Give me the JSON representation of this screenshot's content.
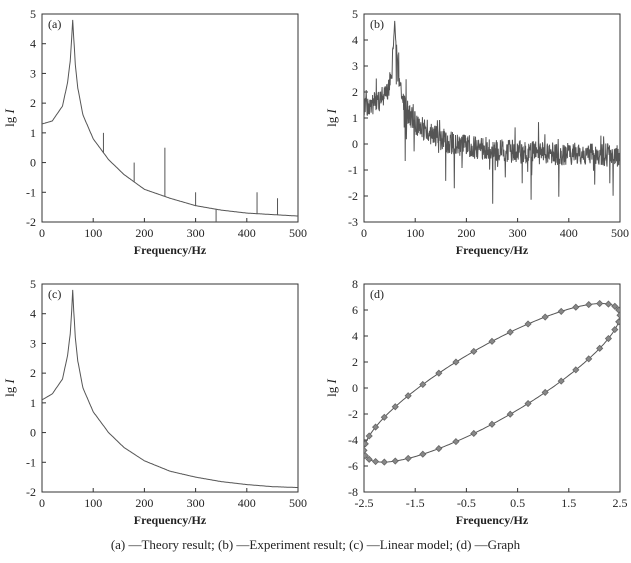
{
  "caption": "(a) —Theory result; (b) —Experiment result; (c) —Linear model; (d) —Graph",
  "chart_data": [
    {
      "id": "a",
      "type": "line",
      "panel_label": "(a)",
      "title": "",
      "xlabel": "Frequency/Hz",
      "ylabel": "lg I",
      "xlim": [
        0,
        500
      ],
      "ylim": [
        -2,
        5
      ],
      "xticks": [
        0,
        100,
        200,
        300,
        400,
        500
      ],
      "yticks": [
        -2,
        -1,
        0,
        1,
        2,
        3,
        4,
        5
      ],
      "grid": false,
      "resonance_hz": 60,
      "peak": 4.8,
      "harmonic_spikes": [
        {
          "x": 120,
          "y": 1.0
        },
        {
          "x": 180,
          "y": 0.0
        },
        {
          "x": 240,
          "y": 0.5
        },
        {
          "x": 300,
          "y": -1.0
        },
        {
          "x": 340,
          "y": -2.0
        },
        {
          "x": 420,
          "y": -1.0
        },
        {
          "x": 460,
          "y": -1.2
        }
      ],
      "series": [
        {
          "x": [
            0,
            20,
            40,
            50,
            55,
            58,
            60,
            62,
            65,
            70,
            80,
            100,
            130,
            160,
            200,
            250,
            300,
            350,
            400,
            450,
            500
          ],
          "y": [
            1.3,
            1.4,
            1.9,
            2.7,
            3.4,
            4.2,
            4.8,
            4.2,
            3.3,
            2.5,
            1.6,
            0.8,
            0.1,
            -0.4,
            -0.9,
            -1.2,
            -1.45,
            -1.6,
            -1.7,
            -1.75,
            -1.8
          ]
        }
      ]
    },
    {
      "id": "b",
      "type": "line",
      "panel_label": "(b)",
      "title": "",
      "xlabel": "Frequency/Hz",
      "ylabel": "lg I",
      "xlim": [
        0,
        500
      ],
      "ylim": [
        -3,
        5
      ],
      "xticks": [
        0,
        100,
        200,
        300,
        400,
        500
      ],
      "yticks": [
        -3,
        -2,
        -1,
        0,
        1,
        2,
        3,
        4,
        5
      ],
      "grid": false,
      "resonance_hz": 60,
      "peak": 4.8,
      "series": [
        {
          "x": [
            0,
            20,
            40,
            50,
            55,
            58,
            60,
            62,
            65,
            70,
            80,
            100,
            130,
            160,
            200,
            250,
            300,
            350,
            400,
            450,
            500
          ],
          "y": [
            1.5,
            1.6,
            1.8,
            2.3,
            3.0,
            4.0,
            4.8,
            4.0,
            3.0,
            2.2,
            1.4,
            0.8,
            0.4,
            0.1,
            -0.1,
            -0.2,
            -0.3,
            -0.35,
            -0.4,
            -0.4,
            -0.45
          ]
        }
      ]
    },
    {
      "id": "c",
      "type": "line",
      "panel_label": "(c)",
      "title": "",
      "xlabel": "Frequency/Hz",
      "ylabel": "lg I",
      "xlim": [
        0,
        500
      ],
      "ylim": [
        -2,
        5
      ],
      "xticks": [
        0,
        100,
        200,
        300,
        400,
        500
      ],
      "yticks": [
        -2,
        -1,
        0,
        1,
        2,
        3,
        4,
        5
      ],
      "grid": false,
      "series": [
        {
          "x": [
            0,
            20,
            40,
            50,
            55,
            58,
            60,
            62,
            65,
            70,
            80,
            100,
            130,
            160,
            200,
            250,
            300,
            350,
            400,
            450,
            500
          ],
          "y": [
            1.1,
            1.3,
            1.8,
            2.6,
            3.3,
            4.1,
            4.8,
            4.1,
            3.2,
            2.4,
            1.5,
            0.7,
            0.0,
            -0.5,
            -0.95,
            -1.3,
            -1.5,
            -1.65,
            -1.75,
            -1.82,
            -1.85
          ]
        }
      ]
    },
    {
      "id": "d",
      "type": "scatter",
      "panel_label": "(d)",
      "title": "",
      "xlabel": "Frequency/Hz",
      "ylabel": "lg I",
      "xlim": [
        -2.5,
        2.5
      ],
      "ylim": [
        -8,
        8
      ],
      "xticks": [
        -2.5,
        -1.5,
        -0.5,
        0.5,
        1.5,
        2.5
      ],
      "yticks": [
        -8,
        -6,
        -4,
        -2,
        0,
        2,
        4,
        6,
        8
      ],
      "grid": false,
      "ellipse": {
        "cx": 0.0,
        "cy": 0.4,
        "a": 2.5,
        "b": 6.1,
        "phase": 0.55
      },
      "marker_count": 44
    }
  ]
}
